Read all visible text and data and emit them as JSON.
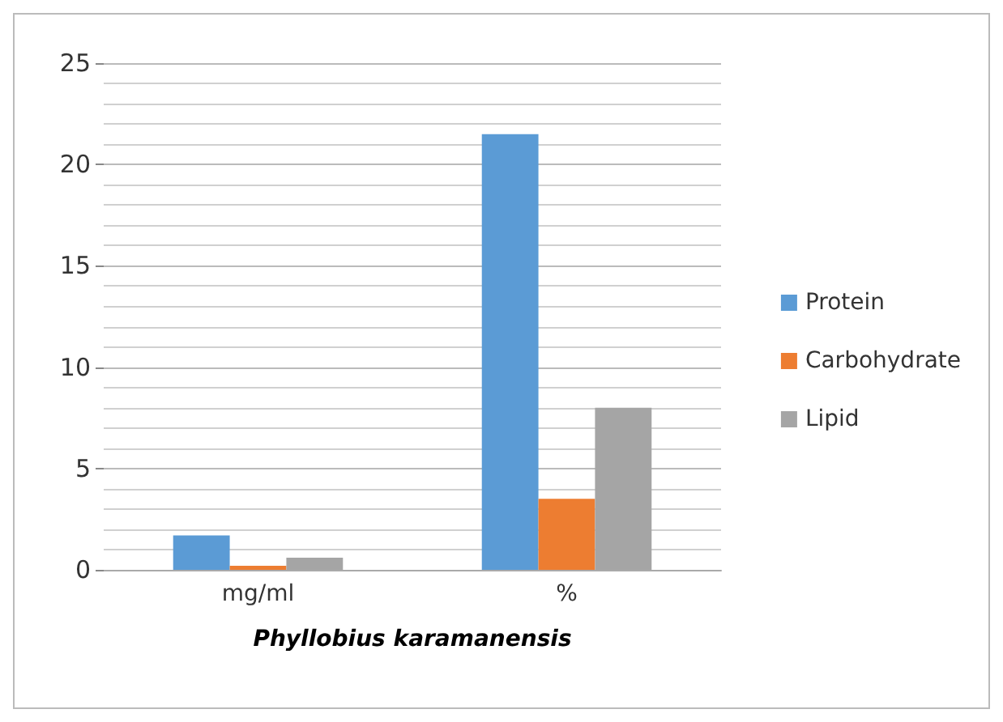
{
  "chart_data": {
    "type": "bar",
    "xlabel": "Phyllobius karamanensis",
    "categories": [
      "mg/ml",
      "%"
    ],
    "series": [
      {
        "name": "Protein",
        "color": "#5b9bd5",
        "values": [
          1.7,
          21.5
        ]
      },
      {
        "name": "Carbohydrate",
        "color": "#ed7d31",
        "values": [
          0.2,
          3.5
        ]
      },
      {
        "name": "Lipid",
        "color": "#a5a5a5",
        "values": [
          0.6,
          8
        ]
      }
    ],
    "ylim": [
      0,
      25
    ],
    "yticks": [
      0,
      5,
      10,
      15,
      20,
      25
    ],
    "grid": "y",
    "legend": "right"
  }
}
